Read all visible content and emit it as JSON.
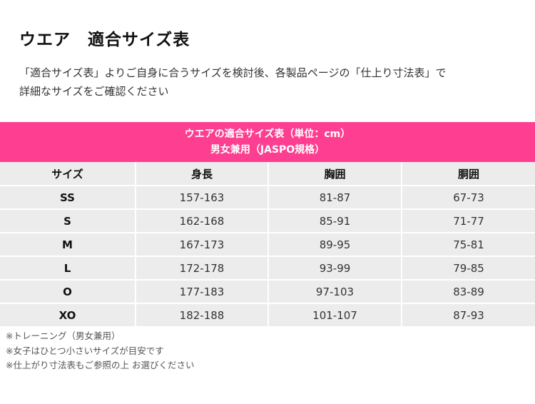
{
  "title": "ウエア　適合サイズ表",
  "intro": [
    "「適合サイズ表」よりご自身に合うサイズを検討後、各製品ページの「仕上り寸法表」で",
    "詳細なサイズをご確認ください"
  ],
  "table": {
    "header_line1": "ウエアの適合サイズ表（単位：cm）",
    "header_line2": "男女兼用（JASPO規格）",
    "columns": [
      "サイズ",
      "身長",
      "胸囲",
      "胴囲"
    ],
    "rows": [
      {
        "size": "SS",
        "height": "157-163",
        "chest": "81-87",
        "waist": "67-73"
      },
      {
        "size": "S",
        "height": "162-168",
        "chest": "85-91",
        "waist": "71-77"
      },
      {
        "size": "M",
        "height": "167-173",
        "chest": "89-95",
        "waist": "75-81"
      },
      {
        "size": "L",
        "height": "172-178",
        "chest": "93-99",
        "waist": "79-85"
      },
      {
        "size": "O",
        "height": "177-183",
        "chest": "97-103",
        "waist": "83-89"
      },
      {
        "size": "XO",
        "height": "182-188",
        "chest": "101-107",
        "waist": "87-93"
      }
    ]
  },
  "notes": [
    "※トレーニング（男女兼用）",
    "※女子はひとつ小さいサイズが目安です",
    "※仕上がり寸法表もご参照の上 お選びください"
  ],
  "colors": {
    "header_bg": "#fe3e90",
    "cell_bg": "#ececec"
  }
}
